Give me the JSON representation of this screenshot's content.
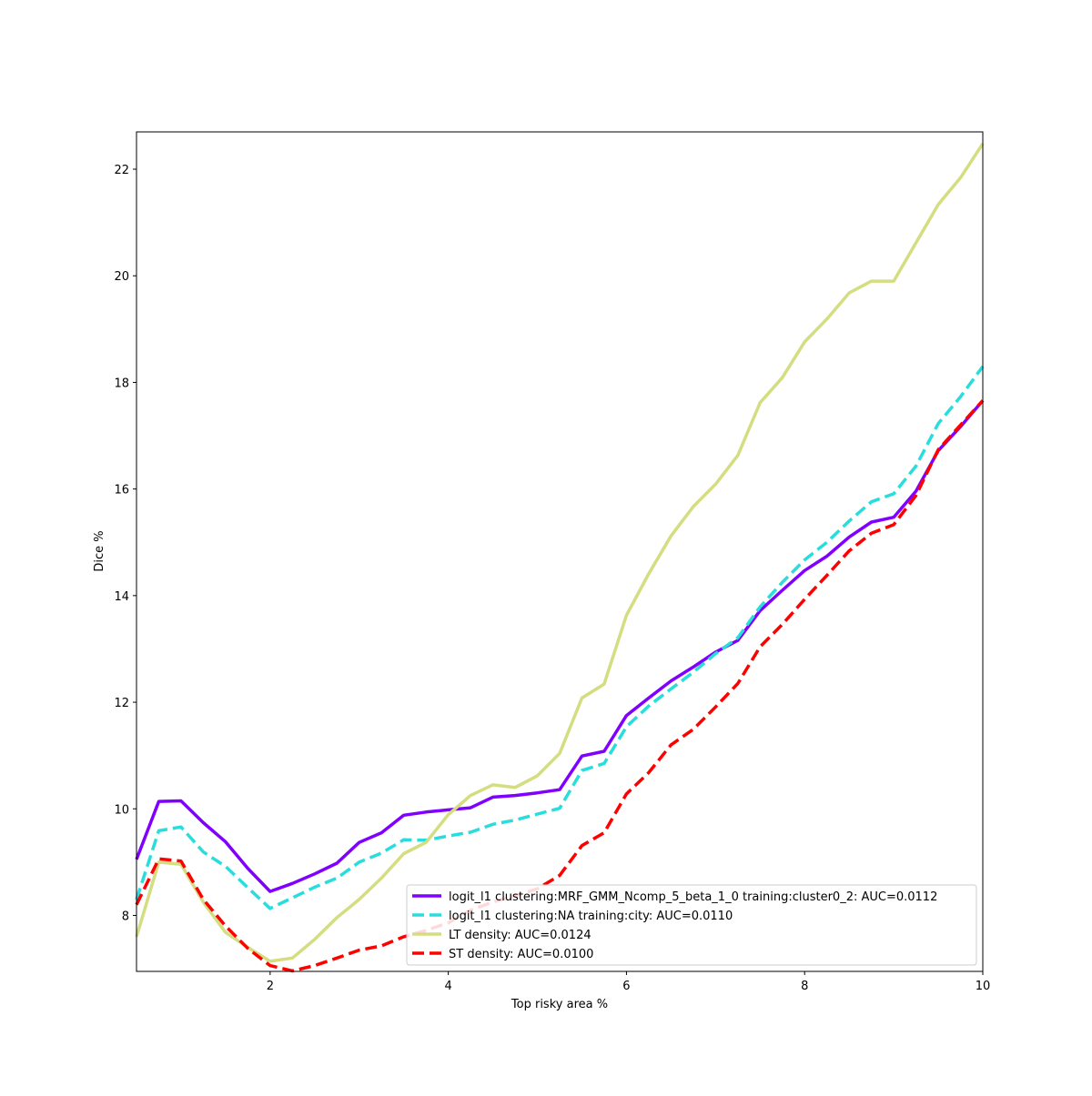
{
  "chart_data": {
    "type": "line",
    "title": "",
    "xlabel": "Top risky area %",
    "ylabel": "Dice %",
    "xlim": [
      0.5,
      10
    ],
    "ylim": [
      6.95,
      22.7
    ],
    "xticks": [
      2,
      4,
      6,
      8,
      10
    ],
    "yticks": [
      8,
      10,
      12,
      14,
      16,
      18,
      20,
      22
    ],
    "grid": false,
    "legend_position": "lower-right",
    "x": [
      0.5,
      0.75,
      1.0,
      1.25,
      1.5,
      1.75,
      2.0,
      2.25,
      2.5,
      2.75,
      3.0,
      3.25,
      3.5,
      3.75,
      4.0,
      4.25,
      4.5,
      4.75,
      5.0,
      5.25,
      5.5,
      5.75,
      6.0,
      6.25,
      6.5,
      6.75,
      7.0,
      7.25,
      7.5,
      7.75,
      8.0,
      8.25,
      8.5,
      8.75,
      9.0,
      9.25,
      9.5,
      9.75,
      10.0
    ],
    "series": [
      {
        "name": "logit_l1 clustering:MRF_GMM_Ncomp_5_beta_1_0 training:cluster0_2: AUC=0.0112",
        "color": "#8000ff",
        "dash": "solid",
        "values": [
          9.05,
          10.14,
          10.15,
          9.74,
          9.38,
          8.88,
          8.45,
          8.6,
          8.78,
          8.98,
          9.37,
          9.55,
          9.88,
          9.94,
          9.98,
          10.02,
          10.22,
          10.25,
          10.3,
          10.36,
          10.99,
          11.08,
          11.75,
          12.08,
          12.4,
          12.66,
          12.94,
          13.16,
          13.72,
          14.1,
          14.47,
          14.74,
          15.1,
          15.38,
          15.47,
          15.96,
          16.72,
          17.17,
          17.66
        ]
      },
      {
        "name": "logit_l1 clustering:NA training:city: AUC=0.0110",
        "color": "#2adddd",
        "dash": "dashed",
        "values": [
          8.3,
          9.59,
          9.66,
          9.19,
          8.92,
          8.52,
          8.13,
          8.33,
          8.53,
          8.7,
          9.0,
          9.17,
          9.42,
          9.41,
          9.49,
          9.56,
          9.71,
          9.79,
          9.9,
          10.01,
          10.72,
          10.85,
          11.54,
          11.93,
          12.25,
          12.56,
          12.91,
          13.21,
          13.79,
          14.25,
          14.67,
          15.0,
          15.4,
          15.76,
          15.91,
          16.43,
          17.23,
          17.73,
          18.3
        ]
      },
      {
        "name": "LT density: AUC=0.0124",
        "color": "#d4dd80",
        "dash": "solid",
        "values": [
          7.6,
          9.0,
          8.96,
          8.25,
          7.68,
          7.4,
          7.14,
          7.2,
          7.55,
          7.96,
          8.3,
          8.7,
          9.16,
          9.37,
          9.89,
          10.25,
          10.45,
          10.4,
          10.62,
          11.04,
          12.08,
          12.34,
          13.63,
          14.41,
          15.12,
          15.67,
          16.09,
          16.63,
          17.62,
          18.09,
          18.76,
          19.19,
          19.68,
          19.9,
          19.9,
          20.62,
          21.34,
          21.84,
          22.48
        ]
      },
      {
        "name": "ST density: AUC=0.0100",
        "color": "#ff0000",
        "dash": "dashed",
        "values": [
          8.2,
          9.06,
          9.02,
          8.3,
          7.8,
          7.38,
          7.06,
          6.96,
          7.06,
          7.2,
          7.35,
          7.43,
          7.6,
          7.72,
          7.86,
          8.1,
          8.25,
          8.37,
          8.5,
          8.75,
          9.31,
          9.55,
          10.28,
          10.68,
          11.2,
          11.49,
          11.91,
          12.35,
          13.04,
          13.46,
          13.93,
          14.38,
          14.84,
          15.17,
          15.33,
          15.88,
          16.74,
          17.2,
          17.66
        ]
      }
    ]
  }
}
